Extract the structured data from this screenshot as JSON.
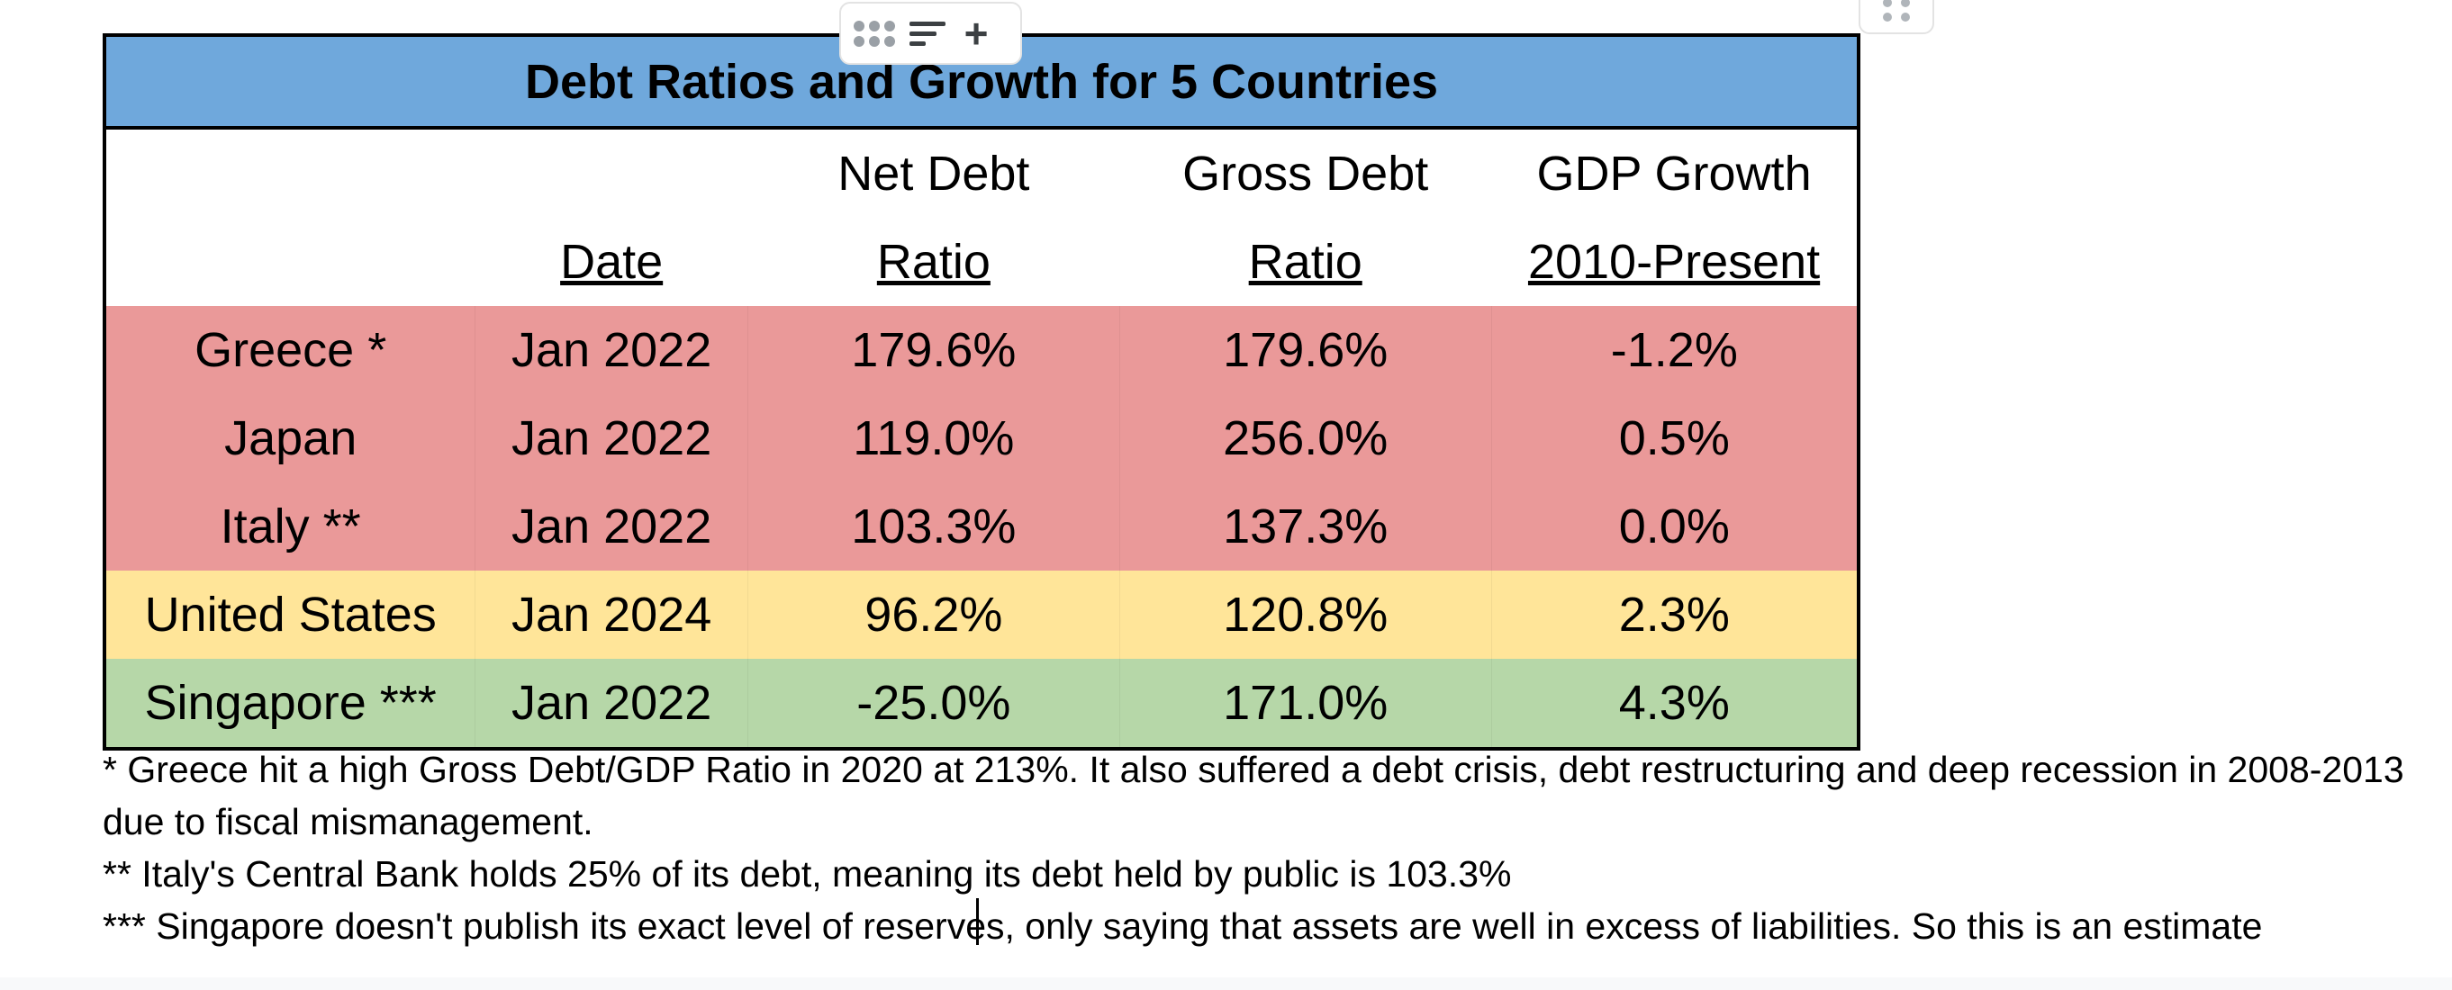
{
  "table": {
    "title": "Debt Ratios and Growth for 5 Countries",
    "header_top": [
      "",
      "",
      "Net Debt",
      "Gross Debt",
      "GDP Growth"
    ],
    "header_bottom": [
      "",
      "Date",
      "Ratio",
      "Ratio",
      "2010-Present"
    ],
    "rows": [
      {
        "cells": [
          "Greece *",
          "Jan 2022",
          "179.6%",
          "179.6%",
          "-1.2%"
        ],
        "highlight": "red"
      },
      {
        "cells": [
          "Japan",
          "Jan 2022",
          "119.0%",
          "256.0%",
          "0.5%"
        ],
        "highlight": "red"
      },
      {
        "cells": [
          "Italy **",
          "Jan 2022",
          "103.3%",
          "137.3%",
          "0.0%"
        ],
        "highlight": "red"
      },
      {
        "cells": [
          "United States",
          "Jan 2024",
          "96.2%",
          "120.8%",
          "2.3%"
        ],
        "highlight": "yellow"
      },
      {
        "cells": [
          "Singapore ***",
          "Jan 2022",
          "-25.0%",
          "171.0%",
          "4.3%"
        ],
        "highlight": "green"
      }
    ]
  },
  "footnotes": [
    "* Greece hit a high Gross Debt/GDP Ratio in 2020 at 213%. It also suffered a debt crisis, debt restructuring and deep recession in 2008-2013 due to fiscal mismanagement.",
    "** Italy's Central Bank holds 25% of its debt, meaning its debt held by public is 103.3%",
    "*** Singapore doesn't publish its exact level of reserves, only saying that assets are well in excess of liabilities. So this is an estimate"
  ],
  "toolbar": {
    "icons": [
      "drag-handle-icon",
      "align-icon",
      "plus-icon"
    ],
    "plus_glyph": "+"
  },
  "colors": {
    "title_bg": "#6fa8dc",
    "red": "#ea9999",
    "yellow": "#ffe599",
    "green": "#b6d7a8"
  }
}
